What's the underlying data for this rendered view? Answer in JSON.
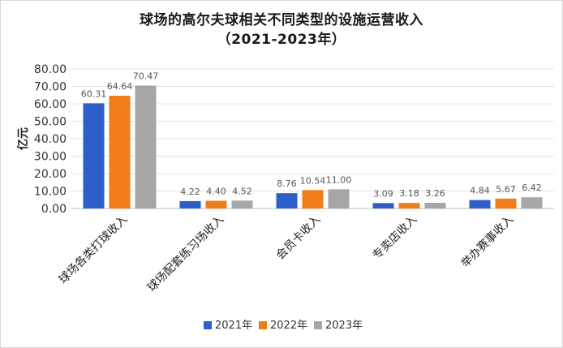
{
  "chart_data": {
    "type": "bar",
    "title": "球场的高尔夫球相关不同类型的设施运营收入",
    "subtitle": "（2021-2023年）",
    "ylabel": "亿元",
    "xlabel": "",
    "ylim": [
      0,
      80
    ],
    "yticks": [
      "0.00",
      "10.00",
      "20.00",
      "30.00",
      "40.00",
      "50.00",
      "60.00",
      "70.00",
      "80.00"
    ],
    "grid": true,
    "legend_position": "bottom",
    "categories": [
      "球场各类打球收入",
      "球场配套练习场收入",
      "会员卡收入",
      "专卖店收入",
      "举办赛事收入"
    ],
    "series": [
      {
        "name": "2021年",
        "color": "#2e5ec9",
        "values": [
          60.31,
          4.22,
          8.76,
          3.09,
          4.84
        ],
        "labels": [
          "60.31",
          "4.22",
          "8.76",
          "3.09",
          "4.84"
        ]
      },
      {
        "name": "2022年",
        "color": "#f07c1a",
        "values": [
          64.64,
          4.4,
          10.54,
          3.18,
          5.67
        ],
        "labels": [
          "64.64",
          "4.40",
          "10.54",
          "3.18",
          "5.67"
        ]
      },
      {
        "name": "2023年",
        "color": "#a6a6a6",
        "values": [
          70.47,
          4.52,
          11.0,
          3.26,
          6.42
        ],
        "labels": [
          "70.47",
          "4.52",
          "11.00",
          "3.26",
          "6.42"
        ]
      }
    ]
  }
}
